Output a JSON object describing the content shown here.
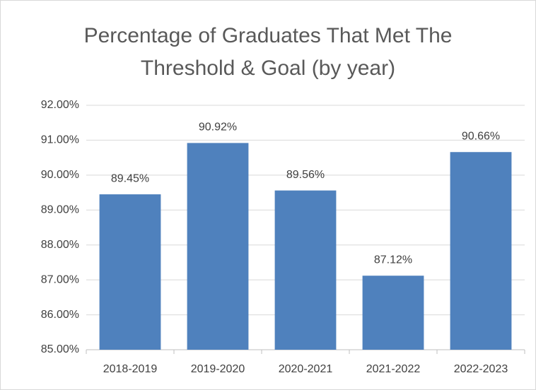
{
  "chart_data": {
    "type": "bar",
    "title": "Percentage of Graduates That Met The Threshold & Goal (by year)",
    "categories": [
      "2018-2019",
      "2019-2020",
      "2020-2021",
      "2021-2022",
      "2022-2023"
    ],
    "values": [
      89.45,
      90.92,
      89.56,
      87.12,
      90.66
    ],
    "value_labels": [
      "89.45%",
      "90.92%",
      "89.56%",
      "87.12%",
      "90.66%"
    ],
    "color": "#4f81bd",
    "ylim": [
      85,
      92
    ],
    "yticks": [
      {
        "value": 85,
        "label": "85.00%"
      },
      {
        "value": 86,
        "label": "86.00%"
      },
      {
        "value": 87,
        "label": "87.00%"
      },
      {
        "value": 88,
        "label": "88.00%"
      },
      {
        "value": 89,
        "label": "89.00%"
      },
      {
        "value": 90,
        "label": "90.00%"
      },
      {
        "value": 91,
        "label": "91.00%"
      },
      {
        "value": 92,
        "label": "92.00%"
      }
    ],
    "grid": true
  }
}
